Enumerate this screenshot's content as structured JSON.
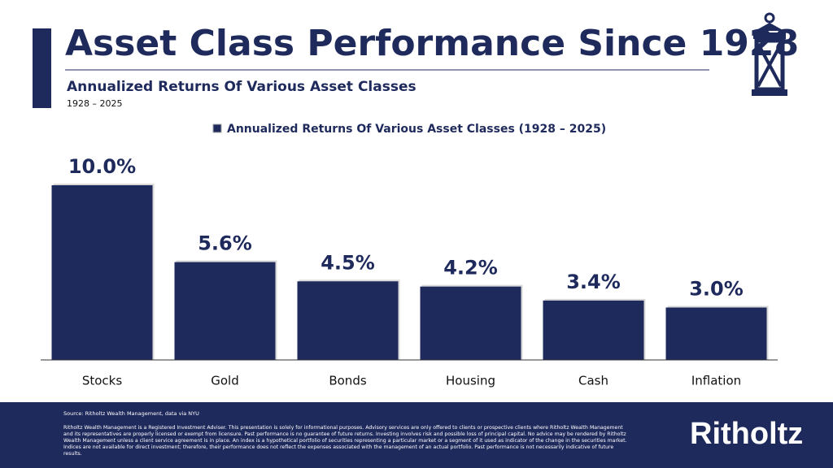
{
  "header": {
    "title": "Asset Class Performance Since 1928",
    "subtitle": "Annualized Returns Of Various Asset Classes",
    "period": "1928 – 2025"
  },
  "chart_data": {
    "type": "bar",
    "categories": [
      "Stocks",
      "Gold",
      "Bonds",
      "Housing",
      "Cash",
      "Inflation"
    ],
    "series": [
      {
        "name": "Annualized Returns Of Various Asset Classes (1928 – 2025)",
        "color": "#1f2a5c",
        "values": [
          10.0,
          5.6,
          4.5,
          4.2,
          3.4,
          3.0
        ],
        "value_labels": [
          "10.0%",
          "5.6%",
          "4.5%",
          "4.2%",
          "3.4%",
          "3.0%"
        ]
      }
    ],
    "ylim": [
      0,
      12
    ],
    "grid": false,
    "legend": "top"
  },
  "footer": {
    "source": "Source: Ritholtz Wealth Management, data via NYU",
    "disclaimer": "Ritholtz Wealth Management is a Registered Investment Adviser. This presentation is solely for informational purposes. Advisory services are only offered to clients or prospective clients where Ritholtz Wealth Management and its representatives are properly licensed or exempt from licensure. Past performance is no guarantee of future returns. Investing involves risk and possible loss of principal capital. No advice may be rendered by Ritholtz Wealth Management unless a client service agreement is in place. An index is a hypothetical portfolio of securities representing a particular market or a segment of it used as indicator of the change in the securities market. Indices are not available for direct investment; therefore, their performance does not reflect the expenses associated with the management of an actual portfolio. Past performance is not necessarily indicative of future results.",
    "logo": "Ritholtz"
  }
}
